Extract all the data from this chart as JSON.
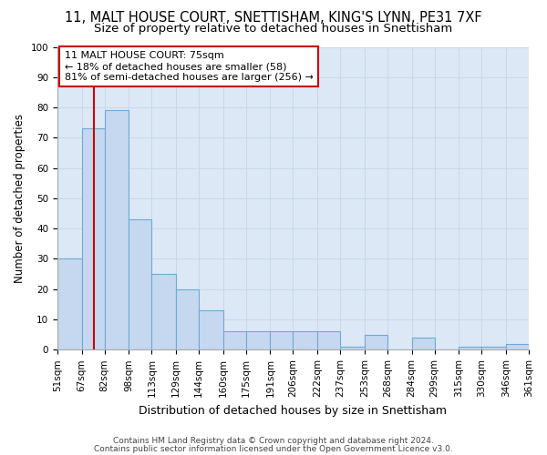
{
  "title1": "11, MALT HOUSE COURT, SNETTISHAM, KING'S LYNN, PE31 7XF",
  "title2": "Size of property relative to detached houses in Snettisham",
  "xlabel": "Distribution of detached houses by size in Snettisham",
  "ylabel": "Number of detached properties",
  "bar_values": [
    30,
    73,
    79,
    43,
    25,
    20,
    13,
    6,
    6,
    6,
    6,
    6,
    1,
    5,
    0,
    4,
    0,
    1,
    1,
    2
  ],
  "bar_labels": [
    "51sqm",
    "67sqm",
    "82sqm",
    "98sqm",
    "113sqm",
    "129sqm",
    "144sqm",
    "160sqm",
    "175sqm",
    "191sqm",
    "206sqm",
    "222sqm",
    "237sqm",
    "253sqm",
    "268sqm",
    "284sqm",
    "299sqm",
    "315sqm",
    "330sqm",
    "346sqm",
    "361sqm"
  ],
  "bin_edges": [
    51,
    67,
    82,
    98,
    113,
    129,
    144,
    160,
    175,
    191,
    206,
    222,
    237,
    253,
    268,
    284,
    299,
    315,
    330,
    346,
    361
  ],
  "bar_color": "#c5d8ef",
  "bar_edge_color": "#6daad4",
  "property_size": 75,
  "property_line_color": "#cc0000",
  "annotation_line1": "11 MALT HOUSE COURT: 75sqm",
  "annotation_line2": "← 18% of detached houses are smaller (58)",
  "annotation_line3": "81% of semi-detached houses are larger (256) →",
  "annotation_box_color": "#ffffff",
  "annotation_box_edge_color": "#cc0000",
  "ylim": [
    0,
    100
  ],
  "yticks": [
    0,
    10,
    20,
    30,
    40,
    50,
    60,
    70,
    80,
    90,
    100
  ],
  "grid_color": "#c8d8e8",
  "plot_bg_color": "#dce8f5",
  "fig_bg_color": "#ffffff",
  "footer1": "Contains HM Land Registry data © Crown copyright and database right 2024.",
  "footer2": "Contains public sector information licensed under the Open Government Licence v3.0.",
  "title1_fontsize": 10.5,
  "title2_fontsize": 9.5,
  "xlabel_fontsize": 9,
  "ylabel_fontsize": 8.5,
  "tick_fontsize": 7.5,
  "annot_fontsize": 8,
  "footer_fontsize": 6.5
}
